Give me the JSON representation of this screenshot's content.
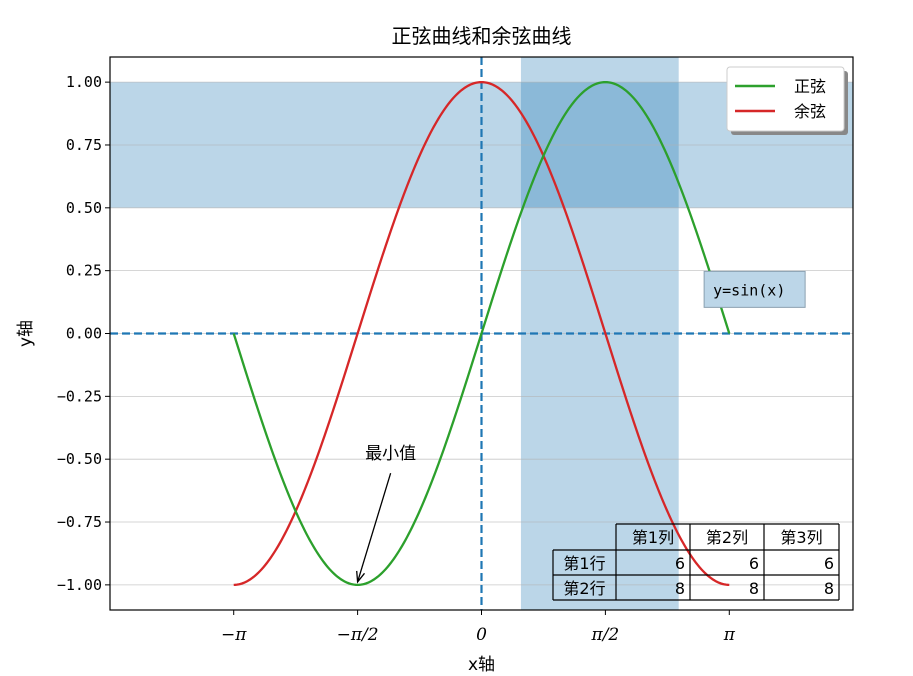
{
  "chart_data": {
    "type": "line",
    "title": "正弦曲线和余弦曲线",
    "xlabel": "x轴",
    "ylabel": "y轴",
    "xlim": [
      -4.71,
      4.71
    ],
    "ylim": [
      -1.1,
      1.1
    ],
    "x_ticks": [
      {
        "value": -3.14159,
        "label": "−π"
      },
      {
        "value": -1.5708,
        "label": "−π/2"
      },
      {
        "value": 0,
        "label": "0"
      },
      {
        "value": 1.5708,
        "label": "π/2"
      },
      {
        "value": 3.14159,
        "label": "π"
      }
    ],
    "y_ticks": [
      {
        "value": 1.0,
        "label": "1.00"
      },
      {
        "value": 0.75,
        "label": "0.75"
      },
      {
        "value": 0.5,
        "label": "0.50"
      },
      {
        "value": 0.25,
        "label": "0.25"
      },
      {
        "value": 0.0,
        "label": "0.00"
      },
      {
        "value": -0.25,
        "label": "−0.25"
      },
      {
        "value": -0.5,
        "label": "−0.50"
      },
      {
        "value": -0.75,
        "label": "−0.75"
      },
      {
        "value": -1.0,
        "label": "−1.00"
      }
    ],
    "grid": "horizontal",
    "legend_position": "top-right",
    "series": [
      {
        "name": "正弦",
        "function": "sin",
        "color": "#2ca02c",
        "x_range": [
          -3.14159,
          3.14159
        ]
      },
      {
        "name": "余弦",
        "function": "cos",
        "color": "#d62728",
        "x_range": [
          -3.14159,
          3.14159
        ]
      }
    ],
    "reference_lines": [
      {
        "orientation": "horizontal",
        "value": 0,
        "style": "dashed",
        "color": "#1f77b4"
      },
      {
        "orientation": "vertical",
        "value": 0,
        "style": "dashed",
        "color": "#1f77b4"
      }
    ],
    "shaded_spans": [
      {
        "orientation": "horizontal",
        "from": 0.5,
        "to": 1.0,
        "color": "#1f77b4",
        "opacity": 0.3
      },
      {
        "orientation": "vertical",
        "from": 0.5,
        "to": 2.5,
        "color": "#1f77b4",
        "opacity": 0.3
      }
    ],
    "annotations": [
      {
        "text": "最小值",
        "point": [
          -1.5708,
          -1.0
        ],
        "text_at": [
          -1.0,
          -0.5
        ]
      },
      {
        "text": "y=sin(x)",
        "at": [
          3.0,
          0.1
        ],
        "boxed": true
      }
    ],
    "table": {
      "column_headers": [
        "第1列",
        "第2列",
        "第3列"
      ],
      "row_headers": [
        "第1行",
        "第2行"
      ],
      "cells": [
        [
          "6",
          "6",
          "6"
        ],
        [
          "8",
          "8",
          "8"
        ]
      ]
    }
  }
}
